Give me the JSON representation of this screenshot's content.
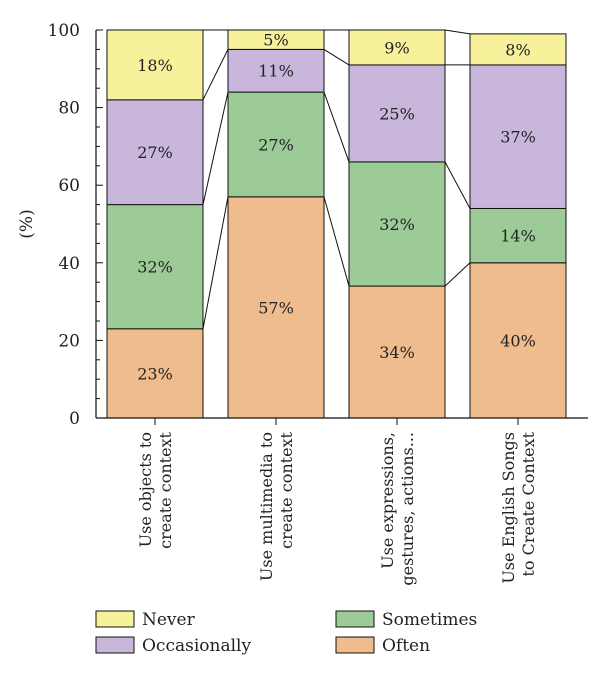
{
  "chart_data": {
    "type": "bar",
    "stacked": true,
    "title": "",
    "xlabel": "",
    "ylabel": "(%)",
    "ylim": [
      0,
      100
    ],
    "yticks": [
      0,
      20,
      40,
      60,
      80,
      100
    ],
    "grid": false,
    "legend_position": "bottom",
    "categories": [
      [
        "Use objects to",
        "create context"
      ],
      [
        "Use multimedia to",
        "create context"
      ],
      [
        "Use expressions,",
        "gestures, actions..."
      ],
      [
        "Use English Songs",
        "to Create Context"
      ]
    ],
    "series": [
      {
        "name": "Often",
        "color": "#efbc8e",
        "values": [
          23,
          57,
          34,
          40
        ],
        "labels": [
          "23%",
          "57%",
          "34%",
          "40%"
        ]
      },
      {
        "name": "Sometimes",
        "color": "#9ccb97",
        "values": [
          32,
          27,
          32,
          14
        ],
        "labels": [
          "32%",
          "27%",
          "32%",
          "14%"
        ]
      },
      {
        "name": "Occasionally",
        "color": "#c8b6db",
        "values": [
          27,
          11,
          25,
          37
        ],
        "labels": [
          "27%",
          "11%",
          "25%",
          "37%"
        ]
      },
      {
        "name": "Never",
        "color": "#f8f19c",
        "values": [
          18,
          5,
          9,
          8
        ],
        "labels": [
          "18%",
          "5%",
          "9%",
          "8%"
        ]
      }
    ],
    "legend": [
      {
        "series": "Never",
        "color": "#f8f19c"
      },
      {
        "series": "Sometimes",
        "color": "#9ccb97"
      },
      {
        "series": "Occasionally",
        "color": "#c8b6db"
      },
      {
        "series": "Often",
        "color": "#efbc8e"
      }
    ]
  }
}
